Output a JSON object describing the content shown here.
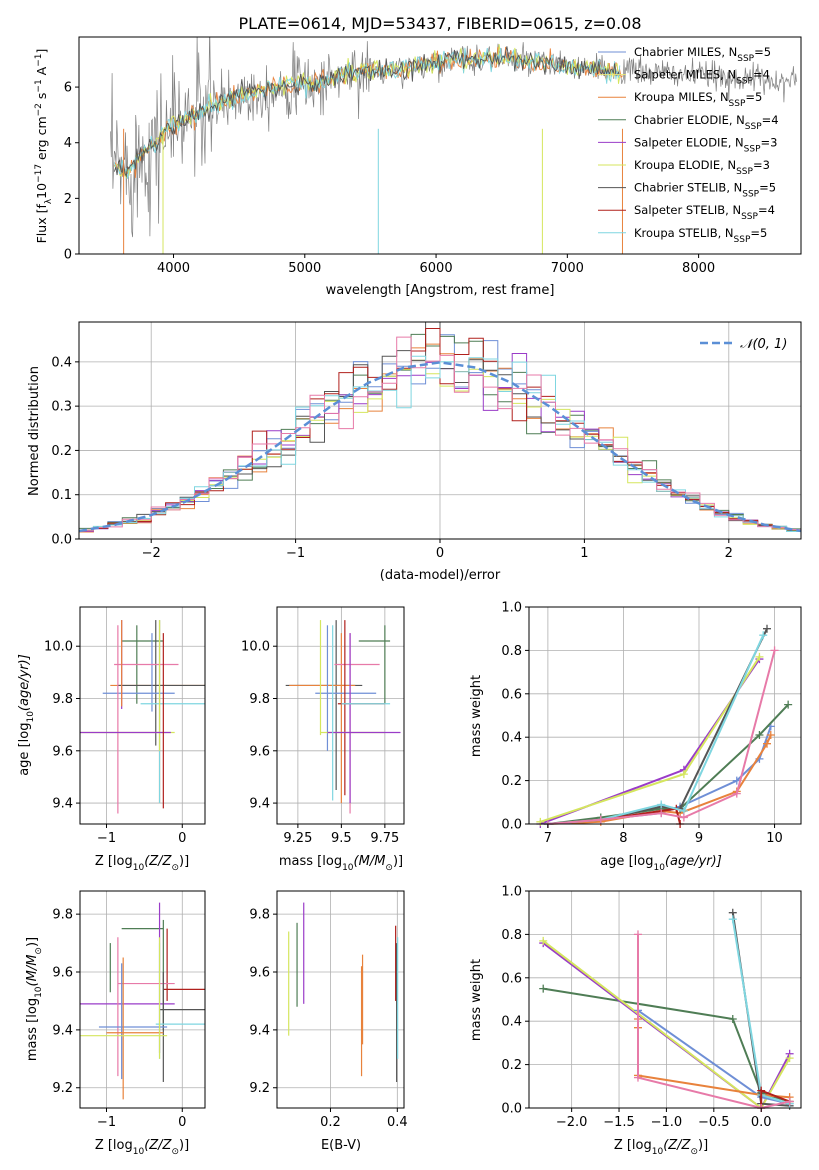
{
  "title": "PLATE=0614, MJD=53437, FIBERID=0615, z=0.08",
  "colors": {
    "chabrier_miles": "#6f8fd6",
    "salpeter_miles": "#e8e87a",
    "kroupa_miles": "#e8823c",
    "chabrier_elodie": "#4f7d55",
    "salpeter_elodie": "#9a3cc8",
    "kroupa_elodie": "#d5e65e",
    "chabrier_stelib": "#555555",
    "salpeter_stelib": "#b0201c",
    "kroupa_stelib": "#7fd6e0",
    "pink": "#e77aa8",
    "spectrum_grey": "#808080",
    "gauss": "#5b8fd6"
  },
  "legend_labels": [
    "Chabrier MILES, N$_{SSP}$=5",
    "Salpeter MILES, N$_{SSP}$=4",
    "Kroupa MILES, N$_{SSP}$=5",
    "Chabrier ELODIE, N$_{SSP}$=4",
    "Salpeter ELODIE, N$_{SSP}$=3",
    "Kroupa ELODIE, N$_{SSP}$=3",
    "Chabrier STELIB, N$_{SSP}$=5",
    "Salpeter STELIB, N$_{SSP}$=4",
    "Kroupa STELIB, N$_{SSP}$=5"
  ],
  "legend_display": [
    "Chabrier MILES, N",
    "Salpeter MILES, N",
    "Kroupa MILES, N",
    "Chabrier ELODIE, N",
    "Salpeter ELODIE, N",
    "Kroupa ELODIE, N",
    "Chabrier STELIB, N",
    "Salpeter STELIB, N",
    "Kroupa STELIB, N"
  ],
  "legend_sub": "SSP",
  "legend_counts": [
    "=5",
    "=4",
    "=5",
    "=4",
    "=3",
    "=3",
    "=5",
    "=4",
    "=5"
  ],
  "gauss_legend": "𝒩(0, 1)",
  "chart_data": [
    {
      "panel": "spectrum",
      "type": "line",
      "xlabel": "wavelength [Angstrom, rest frame]",
      "ylabel_main": "Flux [f",
      "ylabel_sub1": "λ",
      "ylabel_mid": "10",
      "ylabel_sup1": "−17",
      "ylabel_rest": " erg cm",
      "ylabel_sup2": "−2",
      "ylabel_rest2": " s",
      "ylabel_sup3": "−1",
      "ylabel_rest3": " A",
      "ylabel_sup4": "−1",
      "ylabel_end": "]",
      "xlim": [
        3280,
        8780
      ],
      "ylim": [
        0,
        7.8
      ],
      "xticks": [
        4000,
        5000,
        6000,
        7000,
        8000
      ],
      "yticks": [
        0,
        2,
        4,
        6
      ],
      "model_x": [
        3550,
        3650,
        3750,
        3850,
        3950,
        4100,
        4300,
        4500,
        4700,
        4900,
        5100,
        5300,
        5500,
        5700,
        5900,
        6100,
        6300,
        6500,
        6700,
        6900,
        7100,
        7300,
        7400
      ],
      "model_y": [
        3.1,
        3.0,
        3.6,
        3.9,
        4.5,
        4.9,
        5.3,
        5.7,
        5.9,
        6.1,
        6.1,
        6.5,
        6.6,
        6.6,
        6.8,
        7.0,
        7.0,
        7.1,
        6.9,
        6.8,
        6.7,
        6.6,
        6.6
      ]
    },
    {
      "panel": "residuals",
      "type": "histogram",
      "xlabel": "(data-model)/error",
      "ylabel": "Normed distribution",
      "xlim": [
        -2.5,
        2.5
      ],
      "ylim": [
        0,
        0.49
      ],
      "xticks": [
        -2,
        -1,
        0,
        1,
        2
      ],
      "yticks": [
        0.0,
        0.1,
        0.2,
        0.3,
        0.4
      ],
      "gauss_x": [
        -2.5,
        -2.25,
        -2.0,
        -1.75,
        -1.5,
        -1.25,
        -1.0,
        -0.75,
        -0.5,
        -0.25,
        0.0,
        0.25,
        0.5,
        0.75,
        1.0,
        1.25,
        1.5,
        1.75,
        2.0,
        2.25,
        2.5
      ],
      "gauss_y": [
        0.018,
        0.032,
        0.054,
        0.086,
        0.13,
        0.183,
        0.242,
        0.301,
        0.352,
        0.387,
        0.399,
        0.387,
        0.352,
        0.301,
        0.242,
        0.183,
        0.13,
        0.086,
        0.054,
        0.032,
        0.018
      ]
    },
    {
      "panel": "age-vs-Z",
      "type": "scatter",
      "xlabel": "Z [log",
      "xlabel_sub": "10",
      "xlabel_end": "(Z/Z",
      "xlabel_sun": "⊙",
      "xlabel_close": ")]",
      "ylabel": "age  [log",
      "ylabel_sub": "10",
      "ylabel_end": "(age/yr)]",
      "xlim": [
        -1.35,
        0.3
      ],
      "ylim": [
        9.32,
        10.15
      ],
      "xticks": [
        -1,
        0
      ],
      "yticks": [
        9.4,
        9.6,
        9.8,
        10.0
      ]
    },
    {
      "panel": "age-vs-mass",
      "type": "scatter",
      "xlabel": "mass [log",
      "xlabel_sub": "10",
      "xlabel_end": "(M/M",
      "xlabel_sun": "⊙",
      "xlabel_close": ")]",
      "xlim": [
        9.13,
        9.86
      ],
      "ylim": [
        9.32,
        10.15
      ],
      "xticks": [
        9.25,
        9.5,
        9.75
      ],
      "yticks": [
        9.4,
        9.6,
        9.8,
        10.0
      ]
    },
    {
      "panel": "weight-vs-age",
      "type": "line",
      "xlabel": "age  [log",
      "xlabel_sub": "10",
      "xlabel_end": "(age/yr)]",
      "ylabel": "mass weight",
      "xlim": [
        6.75,
        10.35
      ],
      "ylim": [
        0,
        1.0
      ],
      "xticks": [
        7,
        8,
        9,
        10
      ],
      "yticks": [
        0.0,
        0.2,
        0.4,
        0.6,
        0.8,
        1.0
      ],
      "series": [
        {
          "color": "#6f8fd6",
          "x": [
            7.0,
            7.7,
            8.5,
            8.75,
            9.5,
            9.8,
            9.95
          ],
          "y": [
            0.0,
            0.02,
            0.05,
            0.08,
            0.2,
            0.3,
            0.45
          ]
        },
        {
          "color": "#e8823c",
          "x": [
            7.0,
            7.7,
            8.5,
            8.75,
            9.5,
            9.9,
            9.95
          ],
          "y": [
            0.0,
            0.01,
            0.06,
            0.05,
            0.15,
            0.37,
            0.41
          ]
        },
        {
          "color": "#4f7d55",
          "x": [
            7.0,
            7.7,
            8.5,
            8.75,
            9.8,
            10.18
          ],
          "y": [
            0.0,
            0.03,
            0.07,
            0.07,
            0.41,
            0.55
          ]
        },
        {
          "color": "#9a3cc8",
          "x": [
            6.9,
            8.8,
            9.8
          ],
          "y": [
            0.0,
            0.25,
            0.76
          ]
        },
        {
          "color": "#d5e65e",
          "x": [
            6.9,
            8.8,
            9.8
          ],
          "y": [
            0.01,
            0.23,
            0.77
          ]
        },
        {
          "color": "#555555",
          "x": [
            7.0,
            7.7,
            8.5,
            8.75,
            9.9
          ],
          "y": [
            0.0,
            0.02,
            0.08,
            0.07,
            0.9
          ]
        },
        {
          "color": "#b0201c",
          "x": [
            7.7,
            8.7,
            8.75
          ],
          "y": [
            0.02,
            0.07,
            0.0
          ]
        },
        {
          "color": "#7fd6e0",
          "x": [
            7.0,
            7.7,
            8.5,
            8.8,
            9.85
          ],
          "y": [
            0.0,
            0.02,
            0.09,
            0.06,
            0.87
          ]
        },
        {
          "color": "#e77aa8",
          "x": [
            7.0,
            7.7,
            8.5,
            8.8,
            9.5,
            10.0
          ],
          "y": [
            0.0,
            0.02,
            0.05,
            0.03,
            0.14,
            0.8
          ]
        }
      ]
    },
    {
      "panel": "mass-vs-Z",
      "type": "scatter",
      "xlabel": "Z [log",
      "xlabel_sub": "10",
      "xlabel_end": "(Z/Z",
      "xlabel_sun": "⊙",
      "xlabel_close": ")]",
      "ylabel": "mass [log",
      "ylabel_sub": "10",
      "ylabel_end": "(M/M",
      "ylabel_sun": "⊙",
      "ylabel_close": ")]",
      "xlim": [
        -1.35,
        0.3
      ],
      "ylim": [
        9.13,
        9.88
      ],
      "xticks": [
        -1,
        0
      ],
      "yticks": [
        9.2,
        9.4,
        9.6,
        9.8
      ]
    },
    {
      "panel": "mass-vs-EBV",
      "type": "scatter",
      "xlabel": "E(B-V)",
      "xlim": [
        0.04,
        0.42
      ],
      "ylim": [
        9.13,
        9.88
      ],
      "xticks": [
        0.2,
        0.4
      ],
      "xtick_labels": [
        "0.2",
        "0.4"
      ],
      "yticks": [
        9.2,
        9.4,
        9.6,
        9.8
      ]
    },
    {
      "panel": "weight-vs-Z",
      "type": "line",
      "xlabel": "Z [log",
      "xlabel_sub": "10",
      "xlabel_end": "(Z/Z",
      "xlabel_sun": "⊙",
      "xlabel_close": ")]",
      "ylabel": "mass weight",
      "xlim": [
        -2.45,
        0.42
      ],
      "ylim": [
        0,
        1.0
      ],
      "xticks": [
        -2.0,
        -1.5,
        -1.0,
        -0.5,
        0.0
      ],
      "yticks": [
        0.0,
        0.2,
        0.4,
        0.6,
        0.8,
        1.0
      ],
      "series": [
        {
          "color": "#4f7d55",
          "x": [
            -2.3,
            -0.3,
            0.0,
            0.3
          ],
          "y": [
            0.55,
            0.41,
            0.07,
            0.03
          ]
        },
        {
          "color": "#9a3cc8",
          "x": [
            -2.3,
            0.0,
            0.3
          ],
          "y": [
            0.76,
            0.0,
            0.25
          ]
        },
        {
          "color": "#d5e65e",
          "x": [
            -2.3,
            0.0,
            0.3
          ],
          "y": [
            0.77,
            0.0,
            0.23
          ]
        },
        {
          "color": "#6f8fd6",
          "x": [
            -1.3,
            0.0,
            0.3
          ],
          "y": [
            0.45,
            0.05,
            0.02
          ]
        },
        {
          "color": "#e8823c",
          "x": [
            -1.3,
            -1.3,
            -1.3,
            0.0,
            0.3
          ],
          "y": [
            0.41,
            0.37,
            0.15,
            0.06,
            0.05
          ]
        },
        {
          "color": "#555555",
          "x": [
            -0.3,
            0.0,
            0.3
          ],
          "y": [
            0.9,
            0.02,
            0.01
          ]
        },
        {
          "color": "#7fd6e0",
          "x": [
            -0.3,
            0.0,
            0.3
          ],
          "y": [
            0.87,
            0.06,
            0.02
          ]
        },
        {
          "color": "#b0201c",
          "x": [
            0.0,
            0.0,
            0.3
          ],
          "y": [
            0.0,
            0.08,
            0.03
          ]
        },
        {
          "color": "#e77aa8",
          "x": [
            -1.3,
            -1.3,
            0.0,
            0.3
          ],
          "y": [
            0.8,
            0.14,
            0.0,
            0.03
          ]
        }
      ]
    }
  ]
}
